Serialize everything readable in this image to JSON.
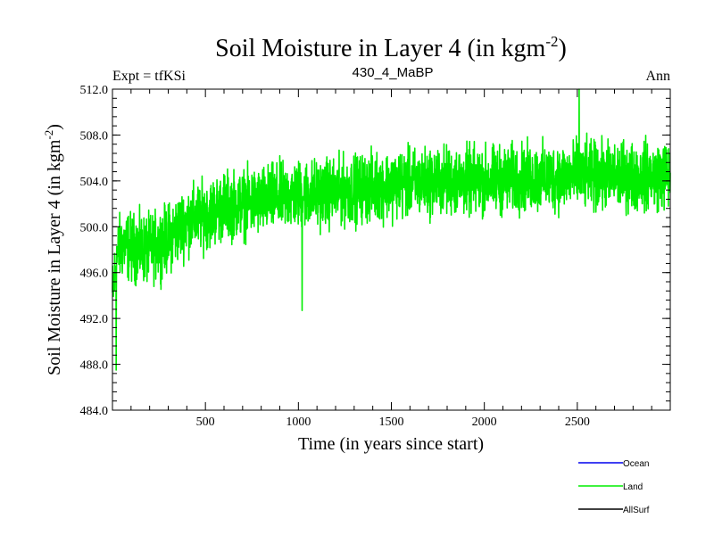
{
  "header": {
    "title": "Soil Moisture in Layer 4 (in kgm",
    "title_sup": "-2",
    "title_close": ")",
    "expt_label": "Expt = tfKSi",
    "run_id": "430_4_MaBP",
    "period": "Ann"
  },
  "chart_data": {
    "type": "line",
    "title": "Soil Moisture in Layer 4 (in kgm-2)",
    "xlabel": "Time (in years since start)",
    "ylabel": "Soil Moisture in Layer 4 (in kgm-2)",
    "ylabel_parts": {
      "main": "Soil Moisture in Layer 4 (in kgm",
      "sup": "-2",
      "close": ")"
    },
    "xlim": [
      0,
      3000
    ],
    "ylim": [
      484.0,
      512.0
    ],
    "xticks": [
      500,
      1000,
      1500,
      2000,
      2500
    ],
    "xtick_labels": [
      "500",
      "1000",
      "1500",
      "2000",
      "2500"
    ],
    "yticks": [
      484,
      488,
      492,
      496,
      500,
      504,
      508,
      512
    ],
    "ytick_labels": [
      "484.0",
      "488.0",
      "492.0",
      "496.0",
      "500.0",
      "504.0",
      "508.0",
      "512.0"
    ],
    "series": [
      {
        "name": "Land",
        "color": "#00ee00",
        "x": [
          0,
          25,
          50,
          100,
          200,
          300,
          400,
          500,
          600,
          700,
          800,
          900,
          1000,
          1200,
          1400,
          1600,
          1800,
          2000,
          2200,
          2400,
          2500,
          2600,
          2800,
          3000
        ],
        "values": [
          494.0,
          497.5,
          498.5,
          498.2,
          498.0,
          499.0,
          500.5,
          501.0,
          501.8,
          502.0,
          502.2,
          502.6,
          502.8,
          503.0,
          503.5,
          503.8,
          504.0,
          504.0,
          504.2,
          504.3,
          504.5,
          504.4,
          504.4,
          504.5
        ],
        "noise_amplitude": 2.2,
        "min_value": 487.5,
        "max_value": 512.0,
        "notable_points": [
          {
            "x": 20,
            "y": 487.5
          },
          {
            "x": 1020,
            "y": 492.7
          },
          {
            "x": 2510,
            "y": 512.0
          }
        ]
      },
      {
        "name": "Ocean",
        "color": "#0000ee",
        "values": []
      },
      {
        "name": "AllSurf",
        "color": "#000000",
        "values": []
      }
    ],
    "legend": [
      {
        "name": "Ocean",
        "color": "#0000ee"
      },
      {
        "name": "Land",
        "color": "#00ee00"
      },
      {
        "name": "AllSurf",
        "color": "#000000"
      }
    ],
    "legend_position": "bottom-right"
  }
}
